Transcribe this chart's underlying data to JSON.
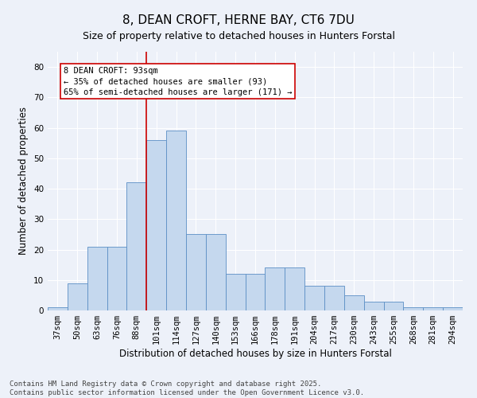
{
  "title": "8, DEAN CROFT, HERNE BAY, CT6 7DU",
  "subtitle": "Size of property relative to detached houses in Hunters Forstal",
  "xlabel": "Distribution of detached houses by size in Hunters Forstal",
  "ylabel": "Number of detached properties",
  "footer_line1": "Contains HM Land Registry data © Crown copyright and database right 2025.",
  "footer_line2": "Contains public sector information licensed under the Open Government Licence v3.0.",
  "categories": [
    "37sqm",
    "50sqm",
    "63sqm",
    "76sqm",
    "88sqm",
    "101sqm",
    "114sqm",
    "127sqm",
    "140sqm",
    "153sqm",
    "166sqm",
    "178sqm",
    "191sqm",
    "204sqm",
    "217sqm",
    "230sqm",
    "243sqm",
    "255sqm",
    "268sqm",
    "281sqm",
    "294sqm"
  ],
  "bar_heights": [
    1,
    9,
    21,
    21,
    42,
    56,
    59,
    25,
    25,
    12,
    12,
    14,
    14,
    8,
    8,
    5,
    3,
    3,
    1,
    1,
    1
  ],
  "ylim": [
    0,
    85
  ],
  "yticks": [
    0,
    10,
    20,
    30,
    40,
    50,
    60,
    70,
    80
  ],
  "bar_color": "#c5d8ee",
  "bar_edge_color": "#5b8ec5",
  "background_color": "#edf1f9",
  "grid_color": "#ffffff",
  "annotation_line1": "8 DEAN CROFT: 93sqm",
  "annotation_line2": "← 35% of detached houses are smaller (93)",
  "annotation_line3": "65% of semi-detached houses are larger (171) →",
  "annotation_box_color": "#ffffff",
  "annotation_border_color": "#cc0000",
  "red_line_x": 4.5,
  "title_fontsize": 11,
  "subtitle_fontsize": 9,
  "axis_label_fontsize": 8.5,
  "tick_fontsize": 7.5,
  "annotation_fontsize": 7.5,
  "footer_fontsize": 6.5
}
